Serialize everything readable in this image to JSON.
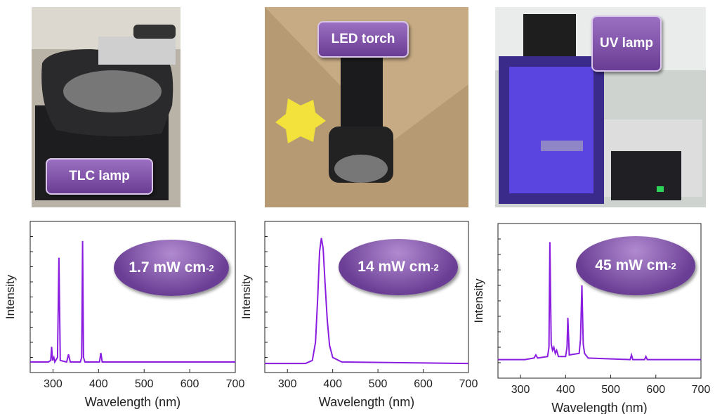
{
  "chart_data": [
    {
      "type": "line",
      "photo_label": "TLC lamp",
      "annotation": "1.7 mW cm",
      "annotation_superscript": "-2",
      "x_label": "Wavelength (nm)",
      "y_label": "Intensity",
      "color": "#8a1de0",
      "xlim": [
        250,
        700
      ],
      "xticks": [
        300,
        400,
        500,
        600,
        700
      ],
      "ylim": [
        0,
        1
      ],
      "x": [
        250,
        290,
        295,
        297,
        299,
        302,
        304,
        306,
        310,
        313,
        316,
        330,
        334,
        338,
        360,
        363,
        365,
        367,
        370,
        402,
        405,
        408,
        500,
        700
      ],
      "values": [
        0.07,
        0.07,
        0.08,
        0.17,
        0.08,
        0.1,
        0.07,
        0.08,
        0.1,
        0.76,
        0.08,
        0.07,
        0.12,
        0.07,
        0.07,
        0.1,
        0.87,
        0.1,
        0.07,
        0.07,
        0.13,
        0.07,
        0.07,
        0.07
      ]
    },
    {
      "type": "line",
      "photo_label": "LED torch",
      "annotation": "14 mW cm",
      "annotation_superscript": "-2",
      "x_label": "Wavelength (nm)",
      "y_label": "Intensity",
      "color": "#8a1de0",
      "xlim": [
        250,
        700
      ],
      "xticks": [
        300,
        400,
        500,
        600,
        700
      ],
      "ylim": [
        0,
        1
      ],
      "x": [
        250,
        340,
        355,
        362,
        367,
        371,
        375,
        379,
        383,
        388,
        393,
        400,
        420,
        700
      ],
      "values": [
        0.06,
        0.06,
        0.08,
        0.2,
        0.5,
        0.8,
        0.89,
        0.82,
        0.6,
        0.35,
        0.18,
        0.1,
        0.07,
        0.06
      ]
    },
    {
      "type": "line",
      "photo_label": "UV lamp",
      "annotation": "45 mW cm",
      "annotation_superscript": "-2",
      "x_label": "Wavelength (nm)",
      "y_label": "Intensity",
      "color": "#8a1de0",
      "xlim": [
        250,
        700
      ],
      "xticks": [
        300,
        400,
        500,
        600,
        700
      ],
      "ylim": [
        0,
        1
      ],
      "x": [
        250,
        310,
        330,
        334,
        338,
        360,
        363,
        365,
        368,
        371,
        374,
        377,
        380,
        384,
        400,
        403,
        405,
        408,
        430,
        433,
        436,
        439,
        442,
        450,
        543,
        546,
        549,
        575,
        578,
        581,
        700
      ],
      "values": [
        0.12,
        0.12,
        0.13,
        0.15,
        0.13,
        0.14,
        0.2,
        0.88,
        0.22,
        0.18,
        0.2,
        0.16,
        0.18,
        0.14,
        0.14,
        0.2,
        0.39,
        0.15,
        0.16,
        0.25,
        0.6,
        0.22,
        0.16,
        0.13,
        0.12,
        0.15,
        0.12,
        0.12,
        0.14,
        0.12,
        0.12
      ]
    }
  ]
}
